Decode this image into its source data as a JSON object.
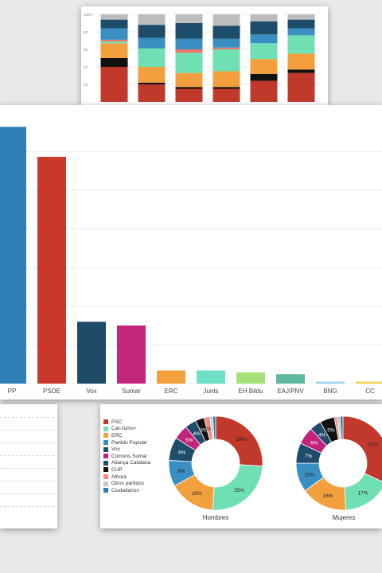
{
  "chart_data": [
    {
      "type": "bar",
      "stacked": true,
      "ytick_labels": [
        "100%",
        "80",
        "60",
        "40",
        "20"
      ],
      "ylim": [
        0,
        100
      ],
      "categories": [
        "",
        "",
        "",
        "",
        "",
        ""
      ],
      "series": [
        {
          "color": "#c0392b",
          "values": [
            40,
            20,
            15,
            15,
            24,
            33
          ]
        },
        {
          "color": "#111111",
          "values": [
            10,
            2,
            2,
            2,
            8,
            4
          ]
        },
        {
          "color": "#f2a03d",
          "values": [
            17,
            18,
            16,
            18,
            17,
            18
          ]
        },
        {
          "color": "#6ee0b4",
          "values": [
            2,
            21,
            23,
            25,
            18,
            21
          ]
        },
        {
          "color": "#e8766b",
          "values": [
            2,
            0,
            4,
            2,
            0,
            0
          ]
        },
        {
          "color": "#3a8fc2",
          "values": [
            13,
            12,
            12,
            10,
            10,
            8
          ]
        },
        {
          "color": "#1e4c6b",
          "values": [
            10,
            15,
            18,
            15,
            15,
            10
          ]
        },
        {
          "color": "#bdbdbd",
          "values": [
            6,
            12,
            10,
            13,
            8,
            6
          ]
        }
      ],
      "grid": true
    },
    {
      "type": "bar",
      "categories": [
        "PP",
        "PSOE",
        "Vox",
        "Sumar",
        "ERC",
        "Junts",
        "EH Bildu",
        "EAJ/PNV",
        "BNG",
        "CC"
      ],
      "values": [
        137,
        121,
        33,
        31,
        7,
        7,
        6,
        5,
        1,
        1
      ],
      "colors": [
        "#2f7fb5",
        "#c9382a",
        "#1f4a66",
        "#c4277a",
        "#f2a03d",
        "#6ee0c6",
        "#a6e07a",
        "#5fb89f",
        "#9fd4ef",
        "#f2d24b"
      ],
      "ylim": [
        0,
        141
      ],
      "grid": true
    },
    {
      "type": "pie",
      "donut": true,
      "legend": [
        {
          "label": "PSC",
          "color": "#c0392b"
        },
        {
          "label": "Cat-Junts+",
          "color": "#6ee0b4"
        },
        {
          "label": "ERC",
          "color": "#f2a03d"
        },
        {
          "label": "Partido Popular",
          "color": "#3a8fc2"
        },
        {
          "label": "Vox",
          "color": "#1e4c6b"
        },
        {
          "label": "Comuns Sumar",
          "color": "#c2227a"
        },
        {
          "label": "Aliança Catalana",
          "color": "#214a6b"
        },
        {
          "label": "CUP",
          "color": "#111111"
        },
        {
          "label": "Alhora",
          "color": "#f28b82"
        },
        {
          "label": "Otros partidos",
          "color": "#c8c8c8"
        },
        {
          "label": "Ciudadanos",
          "color": "#2d7fb8"
        }
      ],
      "charts": [
        {
          "title": "Hombres",
          "slices": [
            {
              "label": "26%",
              "value": 26,
              "color": "#c0392b"
            },
            {
              "label": "25%",
              "value": 25,
              "color": "#6ee0b4"
            },
            {
              "label": "16%",
              "value": 16,
              "color": "#f2a03d"
            },
            {
              "label": "9%",
              "value": 9,
              "color": "#3a8fc2"
            },
            {
              "label": "8%",
              "value": 8,
              "color": "#1e4c6b"
            },
            {
              "label": "5%",
              "value": 5,
              "color": "#c2227a"
            },
            {
              "label": "4%",
              "value": 4,
              "color": "#214a6b"
            },
            {
              "label": "3%",
              "value": 3,
              "color": "#111111"
            },
            {
              "label": "2%",
              "value": 2,
              "color": "#f28b82"
            },
            {
              "label": "",
              "value": 1,
              "color": "#c8c8c8"
            },
            {
              "label": "",
              "value": 1,
              "color": "#2d7fb8"
            }
          ]
        },
        {
          "title": "Mujeres",
          "slices": [
            {
              "label": "32%",
              "value": 32,
              "color": "#c0392b"
            },
            {
              "label": "17%",
              "value": 17,
              "color": "#6ee0b4"
            },
            {
              "label": "16%",
              "value": 16,
              "color": "#f2a03d"
            },
            {
              "label": "10%",
              "value": 10,
              "color": "#3a8fc2"
            },
            {
              "label": "7%",
              "value": 7,
              "color": "#1e4c6b"
            },
            {
              "label": "6%",
              "value": 6,
              "color": "#c2227a"
            },
            {
              "label": "4%",
              "value": 4,
              "color": "#214a6b"
            },
            {
              "label": "5%",
              "value": 5,
              "color": "#111111"
            },
            {
              "label": "",
              "value": 1,
              "color": "#f28b82"
            },
            {
              "label": "",
              "value": 1,
              "color": "#c8c8c8"
            },
            {
              "label": "",
              "value": 1,
              "color": "#2d7fb8"
            }
          ]
        }
      ]
    }
  ]
}
